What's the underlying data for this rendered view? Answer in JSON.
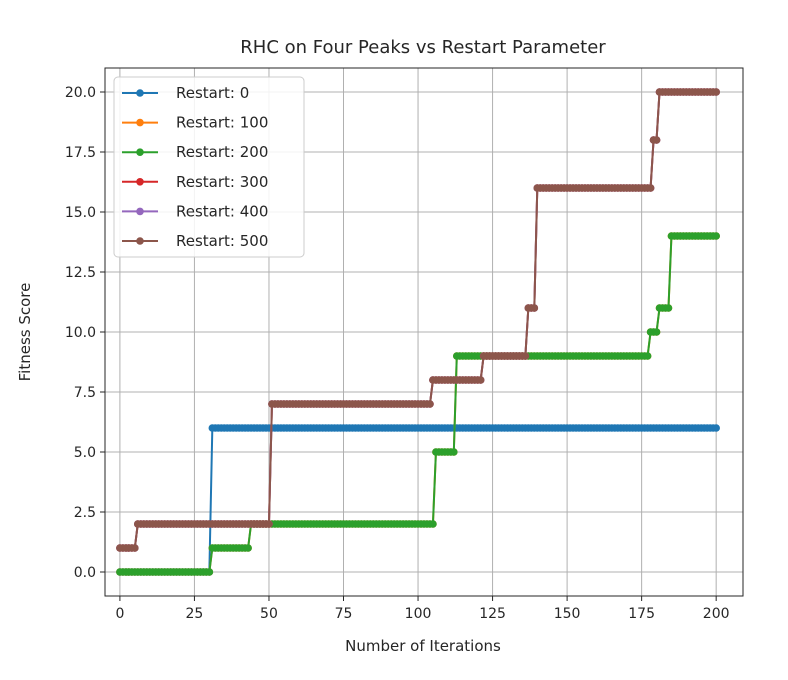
{
  "chart_data": {
    "type": "line",
    "title": "RHC on Four Peaks vs Restart Parameter",
    "xlabel": "Number of Iterations",
    "ylabel": "Fitness Score",
    "xlim": [
      -5,
      209
    ],
    "ylim": [
      -1,
      21
    ],
    "xticks": [
      0,
      25,
      50,
      75,
      100,
      125,
      150,
      175,
      200
    ],
    "yticks": [
      0.0,
      2.5,
      5.0,
      7.5,
      10.0,
      12.5,
      15.0,
      17.5,
      20.0
    ],
    "xtick_labels": [
      "0",
      "25",
      "50",
      "75",
      "100",
      "125",
      "150",
      "175",
      "200"
    ],
    "ytick_labels": [
      "0.0",
      "2.5",
      "5.0",
      "7.5",
      "10.0",
      "12.5",
      "15.0",
      "17.5",
      "20.0"
    ],
    "grid": true,
    "legend_position": "top-left",
    "series": [
      {
        "name": "Restart: 0",
        "color": "#1f77b4",
        "steps": [
          [
            0,
            0
          ],
          [
            31,
            6
          ],
          [
            201,
            6
          ]
        ]
      },
      {
        "name": "Restart: 100",
        "color": "#ff7f0e",
        "steps": [
          [
            0,
            0
          ],
          [
            31,
            1
          ],
          [
            44,
            2
          ],
          [
            106,
            5
          ],
          [
            113,
            9
          ],
          [
            178,
            10
          ],
          [
            181,
            11
          ],
          [
            185,
            14
          ],
          [
            201,
            14
          ]
        ]
      },
      {
        "name": "Restart: 200",
        "color": "#2ca02c",
        "steps": [
          [
            0,
            0
          ],
          [
            31,
            1
          ],
          [
            44,
            2
          ],
          [
            106,
            5
          ],
          [
            113,
            9
          ],
          [
            178,
            10
          ],
          [
            181,
            11
          ],
          [
            185,
            14
          ],
          [
            201,
            14
          ]
        ]
      },
      {
        "name": "Restart: 300",
        "color": "#d62728",
        "steps": [
          [
            0,
            1
          ],
          [
            6,
            2
          ],
          [
            51,
            7
          ],
          [
            105,
            8
          ],
          [
            122,
            9
          ],
          [
            137,
            11
          ],
          [
            140,
            16
          ],
          [
            179,
            18
          ],
          [
            181,
            20
          ],
          [
            201,
            20
          ]
        ]
      },
      {
        "name": "Restart: 400",
        "color": "#9467bd",
        "steps": [
          [
            0,
            1
          ],
          [
            6,
            2
          ],
          [
            51,
            7
          ],
          [
            105,
            8
          ],
          [
            122,
            9
          ],
          [
            137,
            11
          ],
          [
            140,
            16
          ],
          [
            179,
            18
          ],
          [
            181,
            20
          ],
          [
            201,
            20
          ]
        ]
      },
      {
        "name": "Restart: 500",
        "color": "#8c564b",
        "steps": [
          [
            0,
            1
          ],
          [
            6,
            2
          ],
          [
            51,
            7
          ],
          [
            105,
            8
          ],
          [
            122,
            9
          ],
          [
            137,
            11
          ],
          [
            140,
            16
          ],
          [
            179,
            18
          ],
          [
            181,
            20
          ],
          [
            201,
            20
          ]
        ]
      }
    ]
  }
}
